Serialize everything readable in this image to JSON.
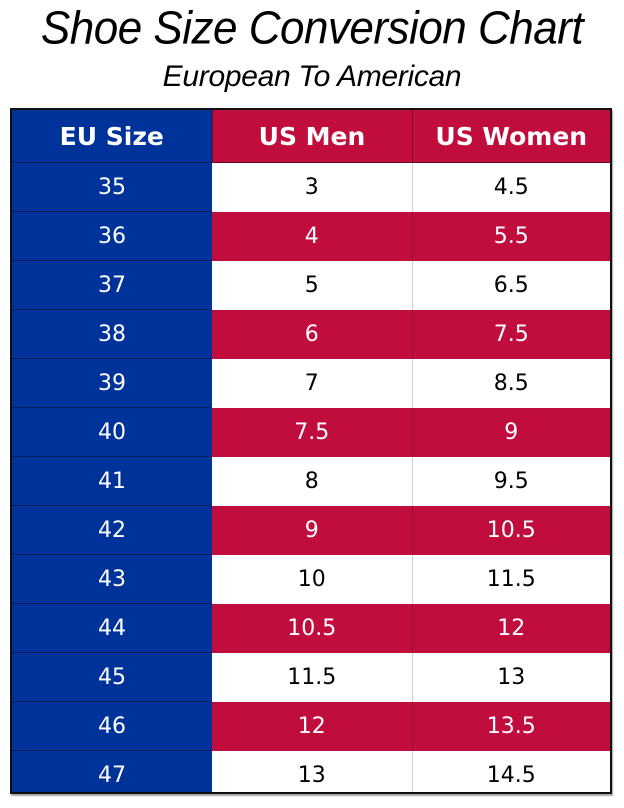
{
  "header": {
    "title": "Shoe Size Conversion Chart",
    "subtitle": "European To American"
  },
  "colors": {
    "eu_column": "#003399",
    "us_highlight": "#c00d3d",
    "us_plain": "#ffffff"
  },
  "table": {
    "columns": [
      "EU Size",
      "US Men",
      "US Women"
    ],
    "rows": [
      [
        "35",
        "3",
        "4.5"
      ],
      [
        "36",
        "4",
        "5.5"
      ],
      [
        "37",
        "5",
        "6.5"
      ],
      [
        "38",
        "6",
        "7.5"
      ],
      [
        "39",
        "7",
        "8.5"
      ],
      [
        "40",
        "7.5",
        "9"
      ],
      [
        "41",
        "8",
        "9.5"
      ],
      [
        "42",
        "9",
        "10.5"
      ],
      [
        "43",
        "10",
        "11.5"
      ],
      [
        "44",
        "10.5",
        "12"
      ],
      [
        "45",
        "11.5",
        "13"
      ],
      [
        "46",
        "12",
        "13.5"
      ],
      [
        "47",
        "13",
        "14.5"
      ]
    ]
  },
  "chart_data": {
    "type": "table",
    "title": "Shoe Size Conversion Chart",
    "subtitle": "European To American",
    "columns": [
      "EU Size",
      "US Men",
      "US Women"
    ],
    "categories": [
      "35",
      "36",
      "37",
      "38",
      "39",
      "40",
      "41",
      "42",
      "43",
      "44",
      "45",
      "46",
      "47"
    ],
    "series": [
      {
        "name": "US Men",
        "values": [
          3,
          4,
          5,
          6,
          7,
          7.5,
          8,
          9,
          10,
          10.5,
          11.5,
          12,
          13
        ]
      },
      {
        "name": "US Women",
        "values": [
          4.5,
          5.5,
          6.5,
          7.5,
          8.5,
          9,
          9.5,
          10.5,
          11.5,
          12,
          13,
          13.5,
          14.5
        ]
      }
    ]
  }
}
